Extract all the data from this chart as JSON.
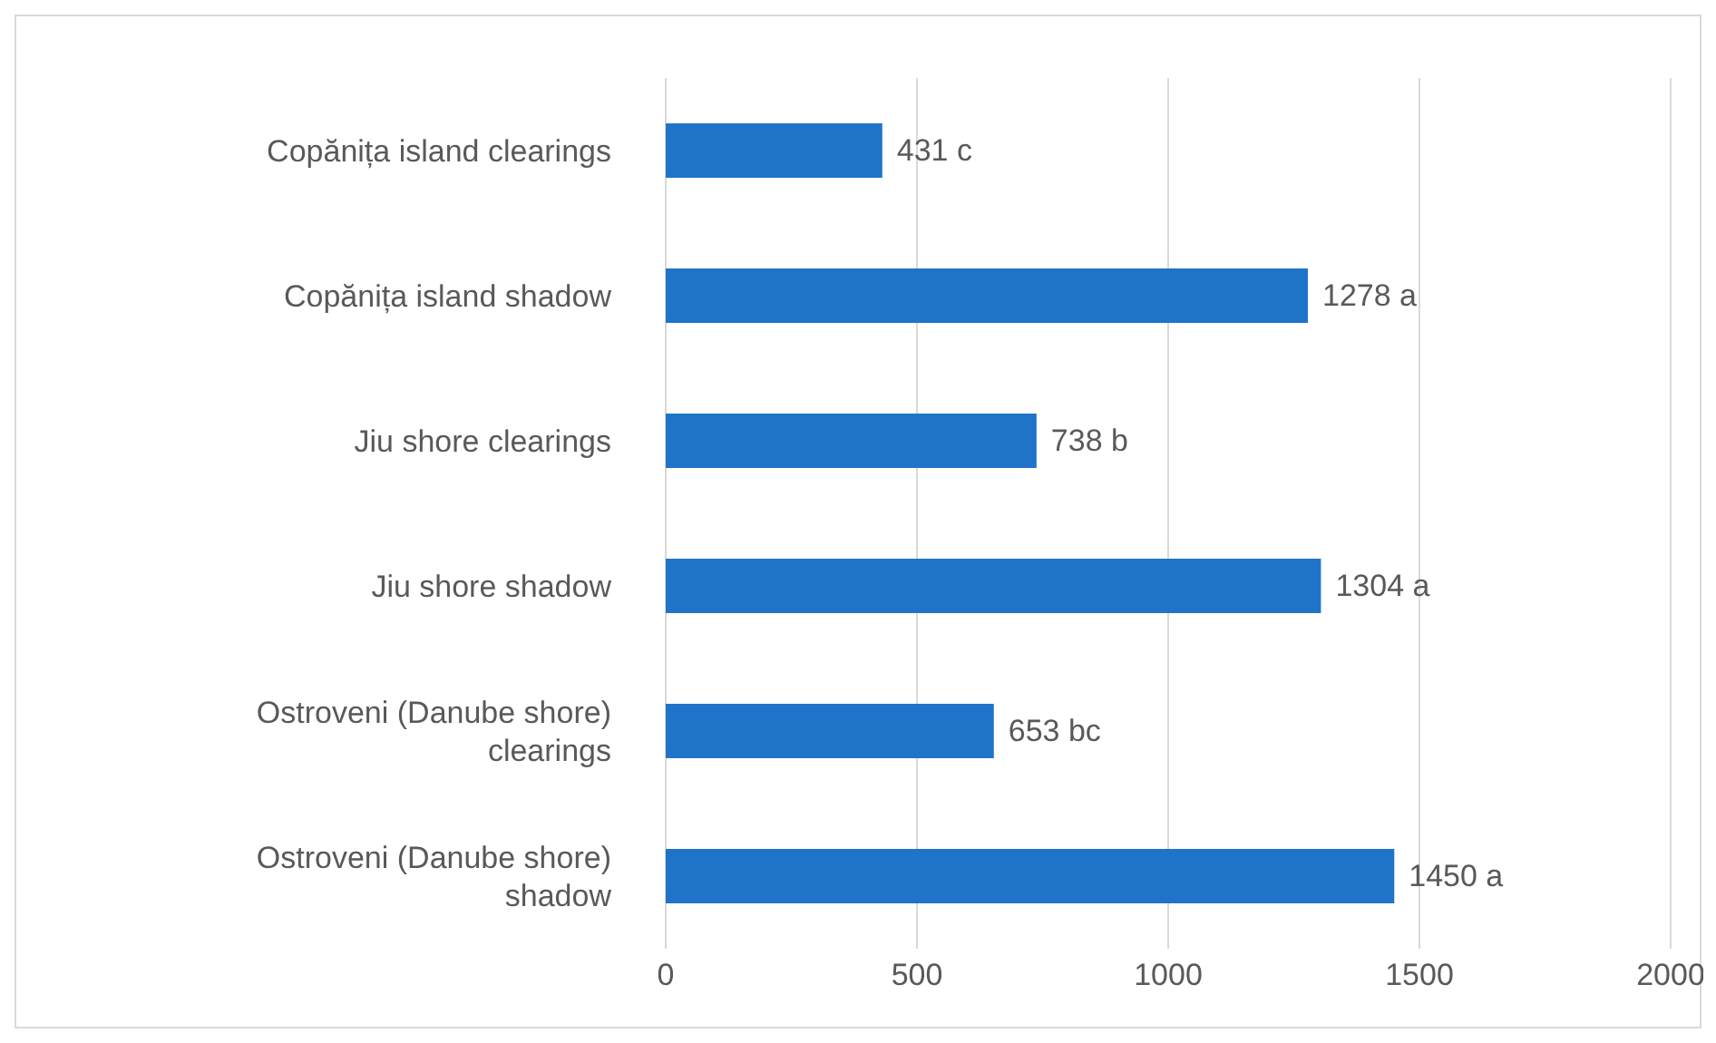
{
  "chart_data": {
    "type": "bar",
    "orientation": "horizontal",
    "categories": [
      "Copănița island clearings",
      "Copănița island shadow",
      "Jiu shore clearings",
      "Jiu shore shadow",
      "Ostroveni (Danube shore) clearings",
      "Ostroveni (Danube shore) shadow"
    ],
    "values": [
      431,
      1278,
      738,
      1304,
      653,
      1450
    ],
    "value_labels": [
      "431 c",
      "1278 a",
      "738 b",
      "1304 a",
      "653 bc",
      "1450 a"
    ],
    "color": "#1f74c9",
    "xlim": [
      0,
      2000
    ],
    "xticks": [
      0,
      500,
      1000,
      1500,
      2000
    ],
    "grid": "x"
  }
}
